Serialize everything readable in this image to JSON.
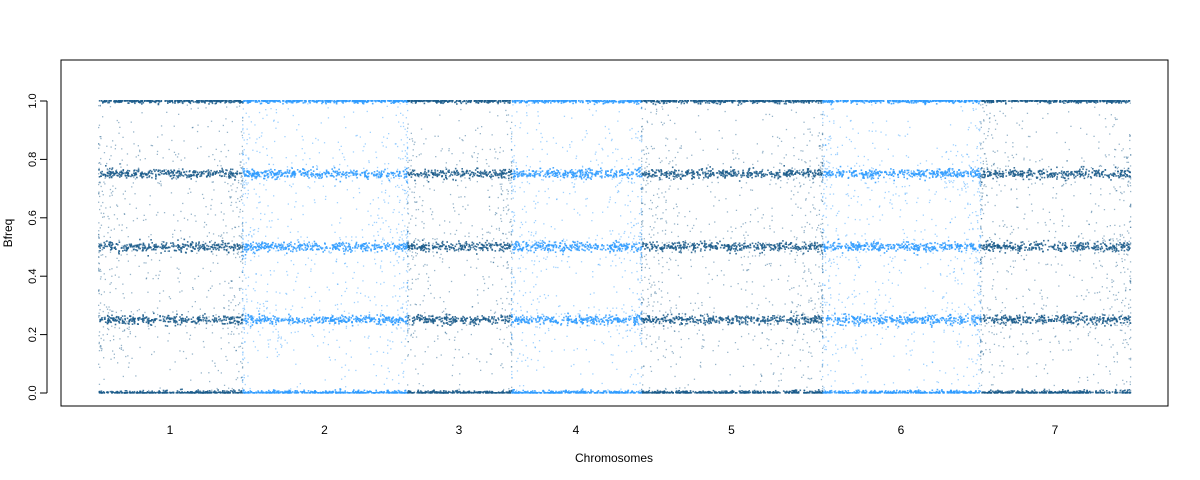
{
  "chart_data": {
    "type": "scatter",
    "title": "",
    "xlabel": "Chromosomes",
    "ylabel": "Bfreq",
    "ylim": [
      -0.05,
      1.13
    ],
    "yticks": [
      "0.0",
      "0.2",
      "0.4",
      "0.6",
      "0.8",
      "1.0"
    ],
    "ytick_values": [
      0.0,
      0.2,
      0.4,
      0.6,
      0.8,
      1.0
    ],
    "grid": false,
    "legend": "none",
    "cluster_levels": [
      0.0,
      0.25,
      0.5,
      0.75,
      1.0
    ],
    "colors": {
      "dark": "#1a5a8a",
      "light": "#2e9bff"
    },
    "chromosomes": [
      {
        "label": "1",
        "color": "dark"
      },
      {
        "label": "2",
        "color": "light"
      },
      {
        "label": "3",
        "color": "dark"
      },
      {
        "label": "4",
        "color": "light"
      },
      {
        "label": "5",
        "color": "dark"
      },
      {
        "label": "6",
        "color": "light"
      },
      {
        "label": "7",
        "color": "dark"
      }
    ]
  }
}
